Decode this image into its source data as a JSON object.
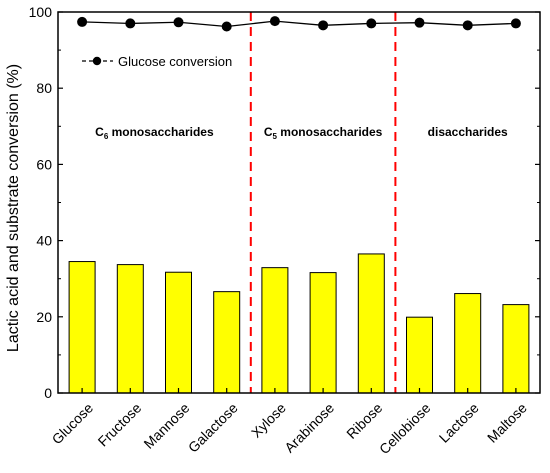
{
  "chart_data": {
    "type": "bar",
    "ylabel": "Lactic acid and substrate conversion (%)",
    "ylim": [
      0,
      100
    ],
    "yticks": [
      "0",
      "20",
      "40",
      "60",
      "80",
      "100"
    ],
    "categories": [
      "Glucose",
      "Fructose",
      "Mannose",
      "Galactose",
      "Xylose",
      "Arabinose",
      "Ribose",
      "Cellobiose",
      "Lactose",
      "Maltose"
    ],
    "series": [
      {
        "kind": "bar",
        "color": "#ffff00",
        "values": [
          34.5,
          33.7,
          31.7,
          26.6,
          32.9,
          31.6,
          36.5,
          19.9,
          26.1,
          23.2
        ]
      },
      {
        "kind": "line",
        "name": "Glucose conversion",
        "color": "#000000",
        "values": [
          97.4,
          97.0,
          97.3,
          96.2,
          97.6,
          96.5,
          97.0,
          97.2,
          96.5,
          97.0
        ]
      }
    ],
    "group_dividers_after_index": [
      3,
      6
    ],
    "divider_color": "#ff0000",
    "groups": [
      {
        "label_prefix": "C",
        "label_sub": "6",
        "label_suffix": " monosaccharides"
      },
      {
        "label_prefix": "C",
        "label_sub": "5",
        "label_suffix": " monosaccharides"
      },
      {
        "label_prefix": "disaccharides",
        "label_sub": "",
        "label_suffix": ""
      }
    ],
    "legend": {
      "placement": "top-left",
      "label": "Glucose conversion"
    },
    "grid": false
  }
}
